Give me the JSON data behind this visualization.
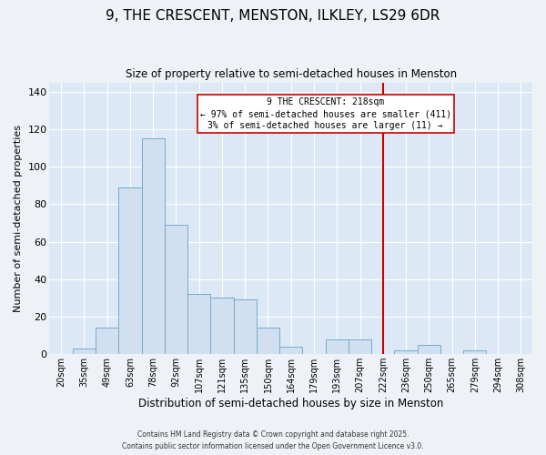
{
  "title": "9, THE CRESCENT, MENSTON, ILKLEY, LS29 6DR",
  "subtitle": "Size of property relative to semi-detached houses in Menston",
  "xlabel": "Distribution of semi-detached houses by size in Menston",
  "ylabel": "Number of semi-detached properties",
  "bar_color": "#d0e0f0",
  "bar_edge_color": "#7aaacc",
  "bin_labels": [
    "20sqm",
    "35sqm",
    "49sqm",
    "63sqm",
    "78sqm",
    "92sqm",
    "107sqm",
    "121sqm",
    "135sqm",
    "150sqm",
    "164sqm",
    "179sqm",
    "193sqm",
    "207sqm",
    "222sqm",
    "236sqm",
    "250sqm",
    "265sqm",
    "279sqm",
    "294sqm",
    "308sqm"
  ],
  "bar_heights": [
    0,
    3,
    14,
    89,
    115,
    69,
    32,
    30,
    29,
    14,
    4,
    0,
    8,
    8,
    0,
    2,
    5,
    0,
    2,
    0,
    0
  ],
  "ylim": [
    0,
    145
  ],
  "yticks": [
    0,
    20,
    40,
    60,
    80,
    100,
    120,
    140
  ],
  "vline_x": 14,
  "vline_color": "#cc0000",
  "annotation_title": "9 THE CRESCENT: 218sqm",
  "annotation_line1": "← 97% of semi-detached houses are smaller (411)",
  "annotation_line2": "3% of semi-detached houses are larger (11) →",
  "footer1": "Contains HM Land Registry data © Crown copyright and database right 2025.",
  "footer2": "Contains public sector information licensed under the Open Government Licence v3.0.",
  "background_color": "#eef2f7",
  "plot_bg_color": "#dce8f5",
  "grid_color": "#ffffff"
}
